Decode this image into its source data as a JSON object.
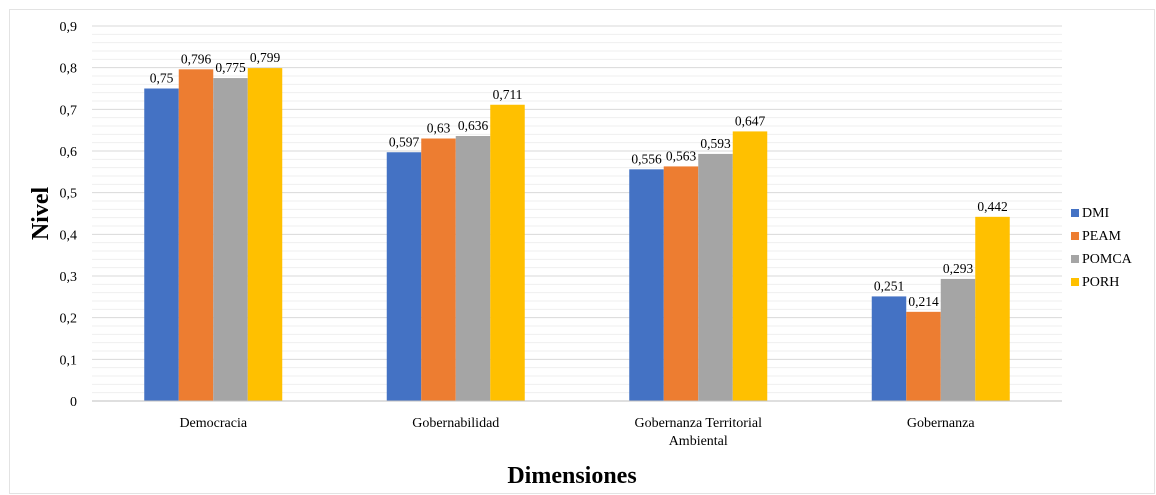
{
  "chart_data": {
    "type": "bar",
    "title": "",
    "xlabel": "Dimensiones",
    "ylabel": "Nivel",
    "ylim": [
      0,
      0.9
    ],
    "yticks": [
      "0",
      "0,1",
      "0,2",
      "0,3",
      "0,4",
      "0,5",
      "0,6",
      "0,7",
      "0,8",
      "0,9"
    ],
    "ytick_values": [
      0,
      0.1,
      0.2,
      0.3,
      0.4,
      0.5,
      0.6,
      0.7,
      0.8,
      0.9
    ],
    "grid": true,
    "legend_position": "right",
    "categories": [
      [
        "Democracia"
      ],
      [
        "Gobernabilidad"
      ],
      [
        "Gobernanza Territorial",
        "Ambiental"
      ],
      [
        "Gobernanza"
      ]
    ],
    "series": [
      {
        "name": "DMI",
        "color": "#4472C4",
        "values": [
          0.75,
          0.597,
          0.556,
          0.251
        ],
        "labels": [
          "0,75",
          "0,597",
          "0,556",
          "0,251"
        ]
      },
      {
        "name": "PEAM",
        "color": "#ED7D31",
        "values": [
          0.796,
          0.63,
          0.563,
          0.214
        ],
        "labels": [
          "0,796",
          "0,63",
          "0,563",
          "0,214"
        ]
      },
      {
        "name": "POMCA",
        "color": "#A5A5A5",
        "values": [
          0.775,
          0.636,
          0.593,
          0.293
        ],
        "labels": [
          "0,775",
          "0,636",
          "0,593",
          "0,293"
        ]
      },
      {
        "name": "PORH",
        "color": "#FFC000",
        "values": [
          0.799,
          0.711,
          0.647,
          0.442
        ],
        "labels": [
          "0,799",
          "0,711",
          "0,647",
          "0,442"
        ]
      }
    ]
  }
}
